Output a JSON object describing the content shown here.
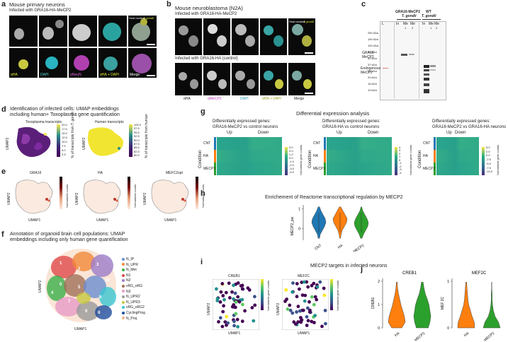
{
  "panels": {
    "a": {
      "letter": "a",
      "title": "Mouse primary neurons",
      "subtitle": "Infected with GRA16-HA-MeCP2",
      "nucleus_label": "Host nucleus",
      "tgondii_label": "T. gondii",
      "channels": [
        "αHA",
        "DAPI",
        "αNeuN",
        "αHA + DAPI",
        "Merge"
      ]
    },
    "b": {
      "letter": "b",
      "title": "Mouse neuroblastoma (N2A)",
      "subtitle_top": "Infected with GRA16-HA-MeCP2",
      "subtitle_bottom": "Infected with GRA16-HA (control)",
      "nucleus_label": "Host nucleus",
      "tgondii_label": "T. gondii",
      "channels": [
        "αHA",
        "αMeCP2",
        "DAPI",
        "αHA + DAPI",
        "Merge"
      ]
    },
    "c": {
      "letter": "c",
      "group1": "GRA16-MeCP2",
      "group2": "WT",
      "species": "T. gondii",
      "lanes": [
        "L",
        "In",
        "Me",
        "Me",
        "In",
        "Me",
        "Me"
      ],
      "lane_sub": [
        "",
        "",
        "1",
        "2",
        "",
        "1",
        "2"
      ],
      "kda": [
        "250 kDa",
        "150 kDa",
        "100 kDa",
        "75 kDa",
        "50 kDa",
        "37 kDa",
        "25 kDa",
        "20 kDa",
        "15 kDa",
        "10 kDa"
      ],
      "band1": "GRA16-MeCP2",
      "band2": "Endogenous MeCP2"
    },
    "d": {
      "letter": "d",
      "title": "Identification of infected cells: UMAP embeddings",
      "title2": "including human+ Toxoplasma gene quantification",
      "sub1": "Toxoplasma transcripts",
      "sub2": "Human transcripts",
      "cb1": [
        "20.0",
        "17.5",
        "15.0",
        "12.5",
        "10.0",
        "7.5",
        "5.0",
        "2.5"
      ],
      "cb1_label": "% of transcripts from T. gondii",
      "cb2": [
        "100.0",
        "97.5",
        "95.0",
        "92.5",
        "90.0",
        "87.5",
        "85.0",
        "82.5",
        "80.0"
      ],
      "cb2_label": "% of transcripts from human",
      "ylabel": "UMAP2",
      "ylabel2": "UMAP2"
    },
    "e": {
      "letter": "e",
      "genes": [
        "GRA16",
        "HA",
        "MEFC2opt"
      ],
      "xlabel": "UMAP1",
      "ylabel": "UMAP2",
      "cb_label": "Normalized counts"
    },
    "f": {
      "letter": "f",
      "title": "Annotation of organoid brain cell populations: UMAP",
      "title2": "embeddings including only human gene quantification",
      "xlabel": "UMAP1",
      "ylabel": "UMAP2",
      "clusters": [
        "0",
        "1",
        "2",
        "3",
        "4",
        "5",
        "6",
        "7",
        "8",
        "9",
        "10",
        "11"
      ],
      "legend": [
        {
          "label": "N_IP",
          "color": "#6a8fd0"
        },
        {
          "label": "N_UPR",
          "color": "#f1883a"
        },
        {
          "label": "N_Met",
          "color": "#3bb04a"
        },
        {
          "label": "N1",
          "color": "#e04b4b"
        },
        {
          "label": "N2",
          "color": "#9c7cc8"
        },
        {
          "label": "vRG_oRG",
          "color": "#a0705a"
        },
        {
          "label": "N3",
          "color": "#e89bc7"
        },
        {
          "label": "N_UPR2",
          "color": "#9a9a9a"
        },
        {
          "label": "N_UPR3",
          "color": "#c8c840"
        },
        {
          "label": "vRG_oRG2",
          "color": "#3cc6d2"
        },
        {
          "label": "CyclingProg",
          "color": "#1f4e9c"
        },
        {
          "label": "N_Proj",
          "color": "#f4b48a"
        }
      ]
    },
    "g": {
      "letter": "g",
      "title": "Differential expression analysis",
      "heatmaps": [
        {
          "h1": "Differentially expressed genes:",
          "h2": "GRA16-MeCP2 vs control neurons",
          "up": "Up",
          "down": "Down",
          "cb": [
            "3.0",
            "2.0",
            "1.0",
            "0.0",
            "-1.0",
            "-2.0",
            "-3.0",
            "-4.0"
          ]
        },
        {
          "h1": "Differentially expressed genes:",
          "h2": "GRA16-HA vs control neurons",
          "up": "Up",
          "down": "Down",
          "cb": [
            "4",
            "3",
            "2",
            "1",
            "0",
            "-1",
            "-2",
            "-3",
            "-4"
          ]
        },
        {
          "h1": "Differentially expressed genes:",
          "h2": "GRA16-MeCP2 vs GRA16-HA neurons",
          "up": "Up",
          "down": "Down",
          "cb": [
            "5.0",
            "2.5",
            "0.0",
            "-2.5",
            "-5.0",
            "-7.5",
            "-10.0"
          ]
        }
      ],
      "rows": [
        "CNT",
        "HA",
        "MECP2"
      ],
      "ylabel": "Condition",
      "cb_label": "Normalized gene counts"
    },
    "h": {
      "letter": "h",
      "title": "Enrichement of Reactome transcriptional regulation by MECP2",
      "ylabel": "MECP2_pw",
      "yticks": [
        "1",
        "0"
      ],
      "cats": [
        "CNT",
        "HA",
        "MECP2"
      ],
      "colors": [
        "#1f77b4",
        "#ff7f0e",
        "#2ca02c"
      ]
    },
    "i": {
      "letter": "i",
      "title": "MECP2 targets in infected neurons",
      "genes": [
        "CREB1",
        "MEF2C"
      ],
      "xlabel": "UMAP1",
      "ylabel": "UMAP2",
      "cb_label": "Normalized gene counts"
    },
    "j": {
      "letter": "j",
      "genes": [
        "CREB1",
        "MEF2C"
      ],
      "ylabels": [
        "CREB1",
        "MEF 2C"
      ],
      "yticks1": [
        "2",
        "1",
        "0"
      ],
      "yticks2": [
        "1",
        "0"
      ],
      "cats": [
        "HA",
        "MECP2"
      ],
      "colors": [
        "#ff7f0e",
        "#2ca02c"
      ]
    }
  },
  "chart_data": [
    {
      "type": "violin",
      "title": "Enrichement of Reactome transcriptional regulation by MECP2",
      "ylabel": "MECP2_pw",
      "categories": [
        "CNT",
        "HA",
        "MECP2"
      ],
      "ylim": [
        -0.6,
        1.2
      ]
    },
    {
      "type": "violin",
      "title": "CREB1",
      "ylabel": "CREB1",
      "categories": [
        "HA",
        "MECP2"
      ],
      "ylim": [
        0,
        2
      ]
    },
    {
      "type": "violin",
      "title": "MEF2C",
      "ylabel": "MEF 2C",
      "categories": [
        "HA",
        "MECP2"
      ],
      "ylim": [
        0,
        1
      ]
    }
  ]
}
